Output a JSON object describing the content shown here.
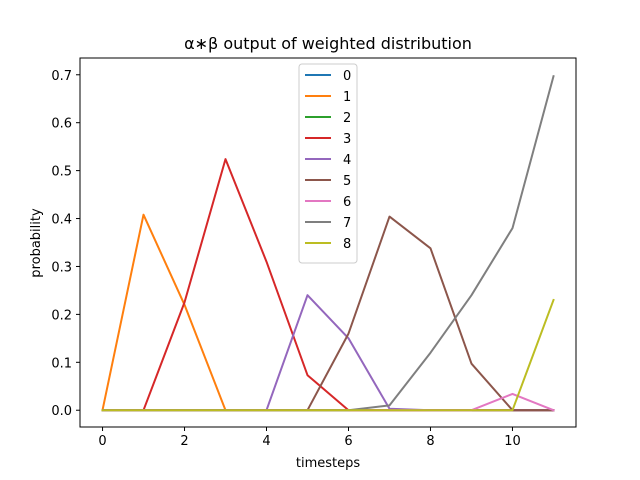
{
  "chart_data": {
    "type": "line",
    "title": "α∗β output of weighted distribution",
    "xlabel": "timesteps",
    "ylabel": "probability",
    "xlim": [
      -0.55,
      11.55
    ],
    "ylim": [
      -0.035,
      0.735
    ],
    "xticks": [
      0,
      2,
      4,
      6,
      8,
      10
    ],
    "yticks": [
      0.0,
      0.1,
      0.2,
      0.3,
      0.4,
      0.5,
      0.6,
      0.7
    ],
    "ytick_labels": [
      "0.0",
      "0.1",
      "0.2",
      "0.3",
      "0.4",
      "0.5",
      "0.6",
      "0.7"
    ],
    "grid": false,
    "legend_position": "upper-center",
    "x": [
      0,
      1,
      2,
      3,
      4,
      5,
      6,
      7,
      8,
      9,
      10,
      11
    ],
    "series": [
      {
        "name": "0",
        "color": "#1f77b4",
        "values": [
          0,
          0,
          0,
          0,
          0,
          0,
          0,
          0,
          0,
          0,
          0,
          0
        ]
      },
      {
        "name": "1",
        "color": "#ff7f0e",
        "values": [
          0,
          0.408,
          0.22,
          0,
          0,
          0,
          0,
          0,
          0,
          0,
          0,
          0
        ]
      },
      {
        "name": "2",
        "color": "#2ca02c",
        "values": [
          0,
          0,
          0,
          0,
          0,
          0,
          0,
          0,
          0,
          0,
          0,
          0
        ]
      },
      {
        "name": "3",
        "color": "#d62728",
        "values": [
          0,
          0,
          0.225,
          0.524,
          0.31,
          0.073,
          0,
          0,
          0,
          0,
          0,
          0
        ]
      },
      {
        "name": "4",
        "color": "#9467bd",
        "values": [
          0,
          0,
          0,
          0,
          0,
          0.24,
          0.15,
          0.003,
          0,
          0,
          0,
          0
        ]
      },
      {
        "name": "5",
        "color": "#8c564b",
        "values": [
          0,
          0,
          0,
          0,
          0,
          0,
          0.16,
          0.404,
          0.338,
          0.097,
          0,
          0
        ]
      },
      {
        "name": "6",
        "color": "#e377c2",
        "values": [
          0,
          0,
          0,
          0,
          0,
          0,
          0,
          0,
          0,
          0,
          0.034,
          0
        ]
      },
      {
        "name": "7",
        "color": "#7f7f7f",
        "values": [
          0,
          0,
          0,
          0,
          0,
          0,
          0,
          0.01,
          0.12,
          0.24,
          0.38,
          0.697
        ]
      },
      {
        "name": "8",
        "color": "#bcbd22",
        "values": [
          0,
          0,
          0,
          0,
          0,
          0,
          0,
          0,
          0,
          0,
          0,
          0.23
        ]
      }
    ]
  }
}
